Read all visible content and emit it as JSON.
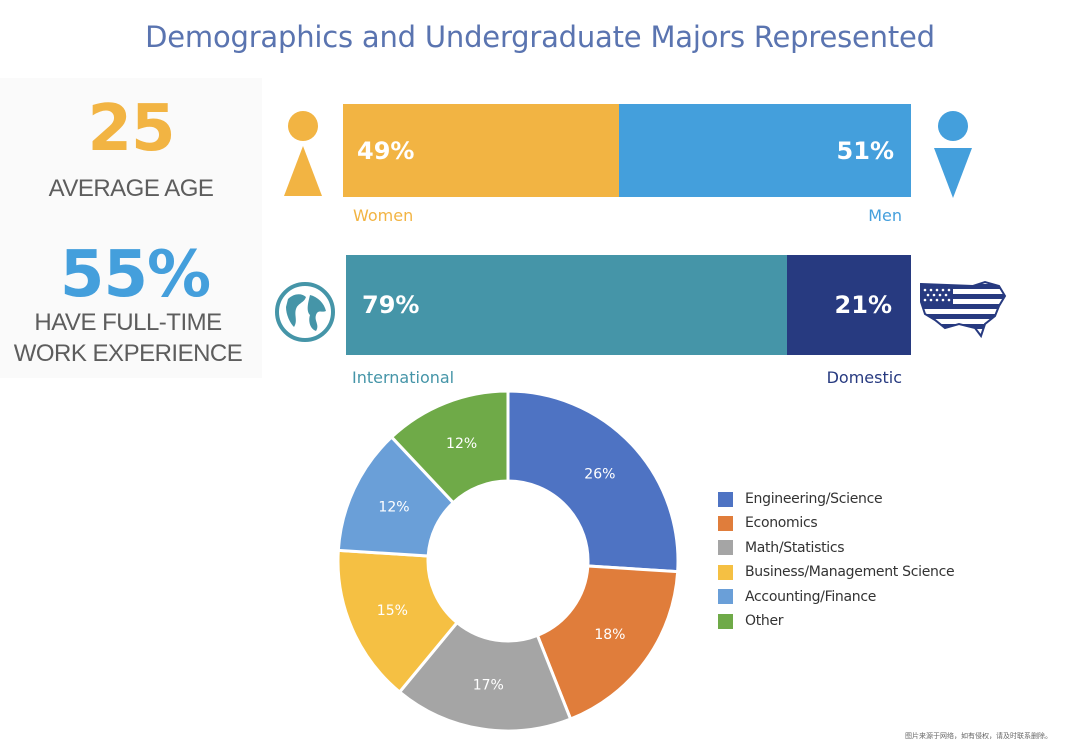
{
  "title": "Demographics and Undergraduate Majors Represented",
  "stats": {
    "age_value": "25",
    "age_label": "AVERAGE AGE",
    "experience_value": "55%",
    "experience_label_line1": "HAVE FULL-TIME",
    "experience_label_line2": "WORK EXPERIENCE"
  },
  "gender_bar": {
    "women_value": "49%",
    "men_value": "51%",
    "women_label": "Women",
    "men_label": "Men"
  },
  "origin_bar": {
    "international_value": "79%",
    "domestic_value": "21%",
    "international_label": "International",
    "domestic_label": "Domestic"
  },
  "colors": {
    "title": "#5a74b0",
    "women": "#f2b443",
    "men": "#449fdc",
    "international": "#4595a8",
    "domestic": "#273a80",
    "age_number": "#f2b443",
    "experience_number": "#449fdc"
  },
  "icons": {
    "women": "female-figure-icon",
    "men": "male-figure-icon",
    "international": "globe-icon",
    "domestic": "usa-flag-map-icon"
  },
  "chart_data": {
    "type": "pie",
    "style": "donut",
    "categories": [
      "Engineering/Science",
      "Economics",
      "Math/Statistics",
      "Business/Management Science",
      "Accounting/Finance",
      "Other"
    ],
    "values": [
      26,
      18,
      17,
      15,
      12,
      12
    ],
    "labels": [
      "26%",
      "18%",
      "17%",
      "15%",
      "12%",
      "12%"
    ],
    "colors": [
      "#4e73c3",
      "#e07d3b",
      "#a5a5a5",
      "#f5c043",
      "#6a9fd8",
      "#6faa48"
    ],
    "legend_position": "right"
  },
  "footnote": "图片来源于网络，如有侵权，请及时联系删除。"
}
